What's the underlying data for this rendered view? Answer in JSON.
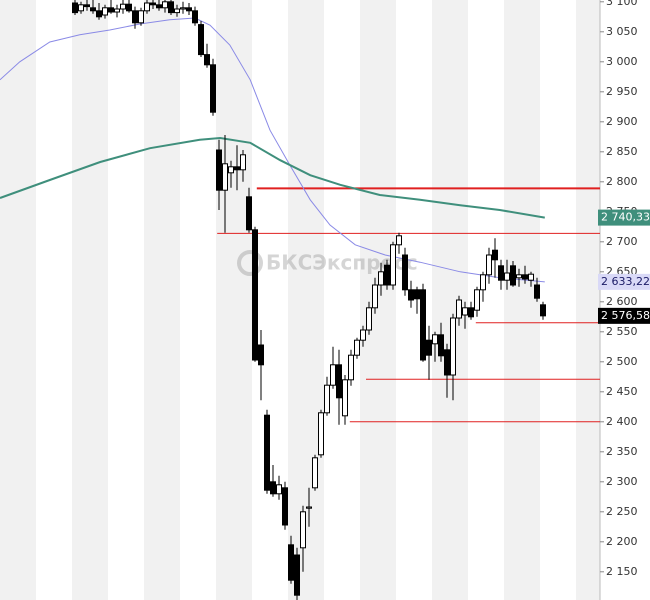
{
  "chart_data": {
    "type": "candlestick",
    "watermark": "БКСЭкспресс",
    "xlim": [
      -0.5,
      99.5
    ],
    "ylim": [
      2103,
      3103
    ],
    "yticks": [
      {
        "value": 2150,
        "label": "2 150"
      },
      {
        "value": 2200,
        "label": "2 200"
      },
      {
        "value": 2250,
        "label": "2 250"
      },
      {
        "value": 2300,
        "label": "2 300"
      },
      {
        "value": 2350,
        "label": "2 350"
      },
      {
        "value": 2400,
        "label": "2 400"
      },
      {
        "value": 2450,
        "label": "2 450"
      },
      {
        "value": 2500,
        "label": "2 500"
      },
      {
        "value": 2550,
        "label": "2 550"
      },
      {
        "value": 2600,
        "label": "2 600"
      },
      {
        "value": 2650,
        "label": "2 650"
      },
      {
        "value": 2700,
        "label": "2 700"
      },
      {
        "value": 2750,
        "label": "2 750"
      },
      {
        "value": 2800,
        "label": "2 800"
      },
      {
        "value": 2850,
        "label": "2 850"
      },
      {
        "value": 2900,
        "label": "2 900"
      },
      {
        "value": 2950,
        "label": "2 950"
      },
      {
        "value": 3000,
        "label": "3 000"
      },
      {
        "value": 3050,
        "label": "3 050"
      },
      {
        "value": 3100,
        "label": "3 100"
      }
    ],
    "up_color": "#ffffff",
    "down_color": "#000000",
    "candles": {
      "x": [
        12,
        13,
        14,
        15,
        16,
        17,
        18,
        19,
        20,
        21,
        22,
        23,
        24,
        25,
        26,
        27,
        28,
        29,
        30,
        31,
        32,
        33,
        34,
        35,
        36,
        37,
        38,
        39,
        40,
        41,
        42,
        43,
        44,
        45,
        46,
        47,
        48,
        49,
        50,
        51,
        52,
        53,
        54,
        55,
        56,
        57,
        58,
        59,
        60,
        61,
        62,
        63,
        64,
        65,
        66,
        67,
        68,
        69,
        70,
        71,
        72,
        73,
        74,
        75,
        76,
        77,
        78,
        79,
        80,
        81,
        82,
        83,
        84,
        85,
        86,
        87,
        88,
        89,
        90
      ],
      "open": [
        3098,
        3085,
        3095,
        3090,
        3085,
        3078,
        3090,
        3083,
        3088,
        3096,
        3085,
        3065,
        3085,
        3098,
        3095,
        3090,
        3100,
        3082,
        3088,
        3090,
        3085,
        3062,
        3012,
        2995,
        2853,
        2786,
        2815,
        2825,
        2820,
        2775,
        2720,
        2528,
        2411,
        2300,
        2280,
        2290,
        2195,
        2178,
        2190,
        2256,
        2290,
        2345,
        2415,
        2461,
        2495,
        2410,
        2470,
        2511,
        2536,
        2553,
        2590,
        2628,
        2661,
        2628,
        2695,
        2678,
        2620,
        2620,
        2620,
        2536,
        2530,
        2545,
        2520,
        2478,
        2573,
        2578,
        2590,
        2586,
        2620,
        2645,
        2686,
        2660,
        2636,
        2660,
        2640,
        2645,
        2636,
        2628,
        2595
      ],
      "high": [
        3103,
        3100,
        3103,
        3103,
        3098,
        3095,
        3103,
        3095,
        3103,
        3103,
        3092,
        3090,
        3103,
        3103,
        3103,
        3103,
        3103,
        3095,
        3100,
        3098,
        3092,
        3068,
        3030,
        3005,
        2870,
        2878,
        2835,
        2861,
        2853,
        2790,
        2725,
        2553,
        2420,
        2328,
        2310,
        2300,
        2210,
        2190,
        2260,
        2290,
        2345,
        2420,
        2475,
        2525,
        2520,
        2478,
        2520,
        2540,
        2560,
        2600,
        2640,
        2665,
        2670,
        2700,
        2715,
        2690,
        2635,
        2625,
        2630,
        2560,
        2550,
        2565,
        2530,
        2580,
        2610,
        2600,
        2600,
        2625,
        2650,
        2690,
        2706,
        2670,
        2670,
        2668,
        2655,
        2660,
        2650,
        2640,
        2600
      ],
      "low": [
        3078,
        3080,
        3085,
        3080,
        3070,
        3072,
        3080,
        3074,
        3080,
        3082,
        3055,
        3060,
        3080,
        3088,
        3085,
        3082,
        3078,
        3075,
        3080,
        3078,
        3060,
        3008,
        2990,
        2910,
        2753,
        2715,
        2790,
        2786,
        2800,
        2715,
        2500,
        2436,
        2280,
        2275,
        2270,
        2220,
        2130,
        2103,
        2150,
        2225,
        2285,
        2340,
        2410,
        2455,
        2395,
        2395,
        2460,
        2505,
        2525,
        2545,
        2580,
        2610,
        2620,
        2620,
        2680,
        2610,
        2590,
        2580,
        2500,
        2470,
        2500,
        2500,
        2440,
        2436,
        2560,
        2555,
        2570,
        2575,
        2600,
        2630,
        2640,
        2620,
        2620,
        2625,
        2625,
        2630,
        2625,
        2600,
        2570
      ],
      "close": [
        3082,
        3095,
        3092,
        3085,
        3075,
        3090,
        3083,
        3088,
        3096,
        3085,
        3065,
        3085,
        3098,
        3095,
        3090,
        3100,
        3082,
        3088,
        3090,
        3085,
        3065,
        3012,
        2995,
        2916,
        2786,
        2830,
        2825,
        2820,
        2845,
        2720,
        2503,
        2495,
        2286,
        2280,
        2295,
        2228,
        2136,
        2111,
        2250,
        2258,
        2340,
        2415,
        2461,
        2495,
        2440,
        2470,
        2511,
        2536,
        2553,
        2590,
        2628,
        2650,
        2628,
        2695,
        2710,
        2620,
        2603,
        2605,
        2503,
        2511,
        2545,
        2510,
        2478,
        2573,
        2603,
        2590,
        2575,
        2620,
        2645,
        2678,
        2670,
        2636,
        2648,
        2628,
        2645,
        2638,
        2646,
        2606,
        2576.58
      ]
    },
    "series": [
      {
        "color": "#8a8ae6",
        "width": 1,
        "x": [
          -0.5,
          2.8,
          7.8,
          12.8,
          17.8,
          22.8,
          27.8,
          32,
          34.5,
          37.8,
          41.2,
          44.5,
          47.8,
          51.2,
          54.5,
          58.7,
          63.7,
          69.5,
          76.2,
          82.8,
          90.3
        ],
        "values": [
          2970,
          3000,
          3033,
          3045,
          3053,
          3063,
          3070,
          3073,
          3061,
          3028,
          2970,
          2886,
          2828,
          2770,
          2728,
          2695,
          2678,
          2666,
          2650,
          2640,
          2633.22
        ]
      },
      {
        "color": "#3f8f7c",
        "width": 2,
        "x": [
          -0.5,
          7.8,
          16.2,
          24.5,
          32.8,
          36.2,
          41.2,
          46.2,
          51.2,
          56.2,
          62.8,
          69.5,
          76.2,
          82.8,
          90.3
        ],
        "values": [
          2773,
          2803,
          2833,
          2856,
          2870,
          2873,
          2865,
          2836,
          2811,
          2795,
          2778,
          2770,
          2761,
          2753,
          2740.33
        ]
      }
    ],
    "levels": [
      {
        "value": 2789,
        "from": 42.3,
        "color": "#e02020",
        "width": 2
      },
      {
        "value": 2714,
        "from": 35.7,
        "color": "#e02020",
        "width": 1
      },
      {
        "value": 2565,
        "from": 78.8,
        "color": "#e02020",
        "width": 1
      },
      {
        "value": 2471,
        "from": 60.5,
        "color": "#e02020",
        "width": 1
      },
      {
        "value": 2400,
        "from": 57.8,
        "color": "#e02020",
        "width": 1
      }
    ],
    "price_labels": [
      {
        "value": 2740.33,
        "label": "2 740,33",
        "background": "#3f8f7c",
        "text_color": "#ffffff"
      },
      {
        "value": 2633.22,
        "label": "2 633,22",
        "background": "#d9d9f7",
        "text_color": "#1a1a66"
      },
      {
        "value": 2576.58,
        "label": "2 576,58",
        "background": "#000000",
        "text_color": "#ffffff"
      }
    ]
  }
}
